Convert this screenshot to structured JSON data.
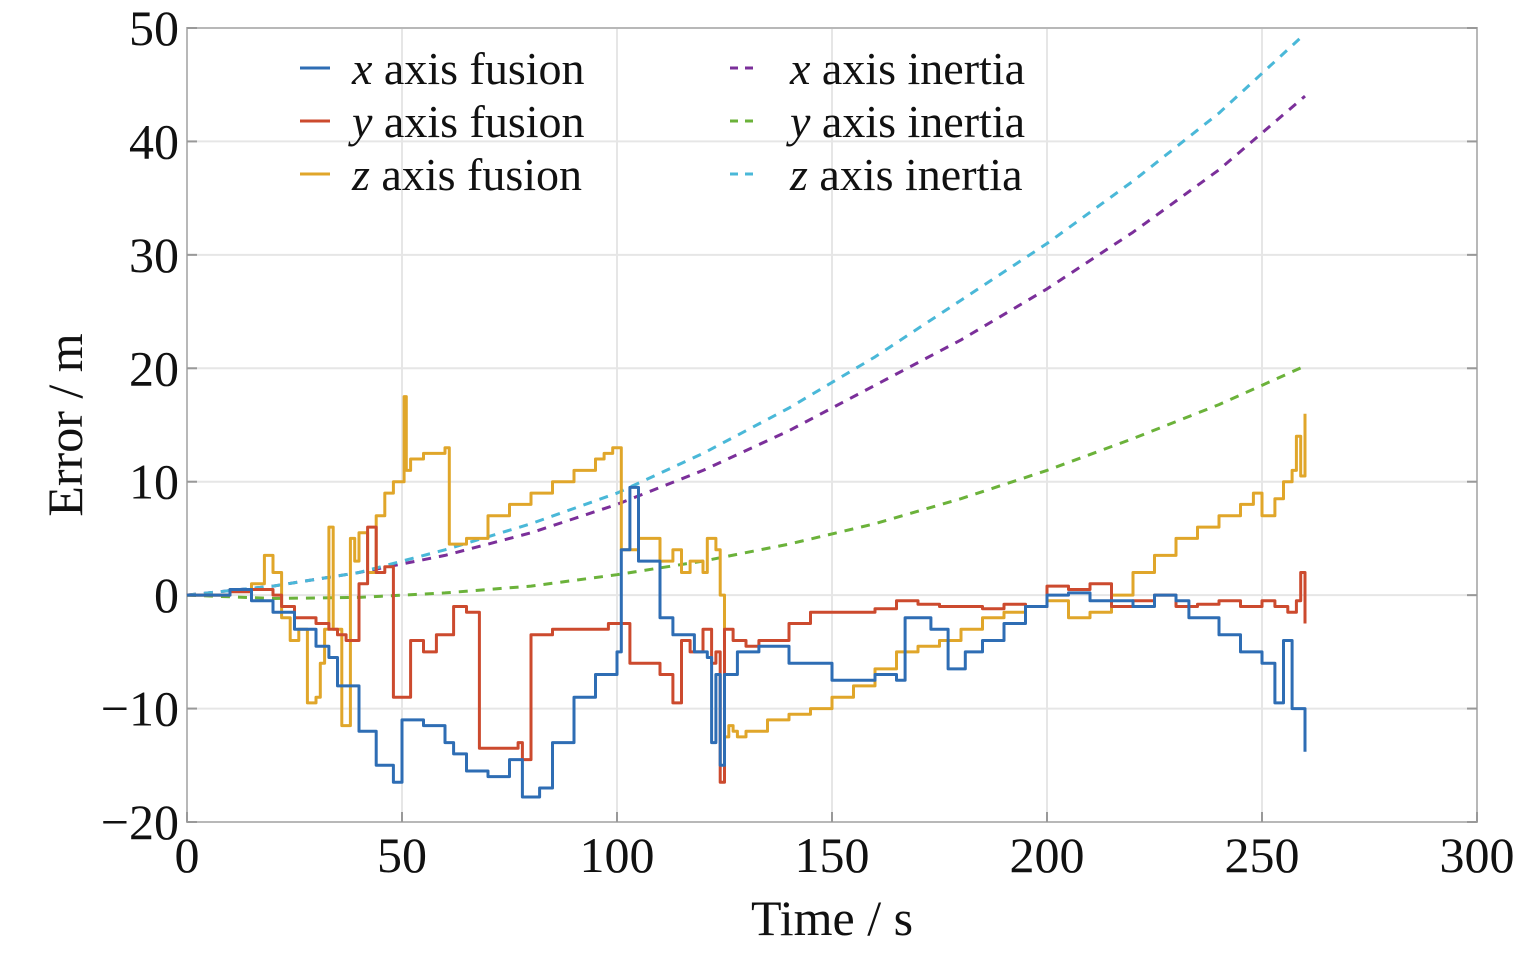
{
  "chart_data": {
    "type": "line",
    "xlabel": "Time / s",
    "ylabel": "Error / m",
    "xlim": [
      0,
      300
    ],
    "ylim": [
      -20,
      50
    ],
    "x_ticks": [
      "0",
      "50",
      "100",
      "150",
      "200",
      "250",
      "300"
    ],
    "y_ticks": [
      "−20",
      "−10",
      "0",
      "10",
      "20",
      "30",
      "40",
      "50"
    ],
    "grid": true,
    "legend_position": "top",
    "series": [
      {
        "name": "x axis fusion",
        "var": "x",
        "label": " axis fusion",
        "color": "#2e6db4",
        "dash": "solid",
        "x": [
          0,
          10,
          15,
          20,
          25,
          30,
          33,
          35,
          40,
          44,
          48,
          50,
          55,
          60,
          62,
          65,
          70,
          75,
          78,
          82,
          85,
          90,
          95,
          100,
          101,
          103,
          105,
          110,
          113,
          118,
          121,
          122,
          123,
          124,
          125,
          128,
          133,
          140,
          150,
          155,
          160,
          165,
          167,
          173,
          177,
          181,
          185,
          190,
          195,
          200,
          205,
          210,
          215,
          220,
          225,
          230,
          233,
          240,
          245,
          250,
          253,
          255,
          257,
          260
        ],
        "y": [
          0,
          0.5,
          -0.5,
          -1.5,
          -3.0,
          -4.5,
          -5.5,
          -8.0,
          -12.0,
          -15.0,
          -16.5,
          -11.0,
          -11.5,
          -13.0,
          -14.0,
          -15.5,
          -16.0,
          -14.5,
          -17.8,
          -17.0,
          -13.0,
          -9.0,
          -7.0,
          -5.0,
          4.0,
          9.5,
          3.0,
          -2.0,
          -3.5,
          -5.0,
          -5.5,
          -13.0,
          -7.0,
          -15.0,
          -7.0,
          -5.0,
          -4.5,
          -6.0,
          -7.5,
          -7.5,
          -7.0,
          -7.5,
          -2.0,
          -3.0,
          -6.5,
          -5.0,
          -4.0,
          -2.5,
          -1.0,
          0,
          0.2,
          -0.5,
          -0.5,
          -1.0,
          0,
          -0.5,
          -2.0,
          -3.5,
          -5.0,
          -6.0,
          -9.5,
          -4.0,
          -10.0,
          -13.8
        ]
      },
      {
        "name": "y axis fusion",
        "var": "y",
        "label": " axis fusion",
        "color": "#cc4a2e",
        "dash": "solid",
        "x": [
          0,
          10,
          15,
          20,
          22,
          25,
          30,
          33,
          35,
          37,
          40,
          42,
          44,
          46,
          48,
          50,
          52,
          55,
          58,
          62,
          65,
          68,
          70,
          75,
          77,
          78,
          80,
          85,
          90,
          95,
          98,
          100,
          103,
          107,
          110,
          113,
          115,
          117,
          120,
          122,
          123,
          124,
          125,
          127,
          130,
          133,
          140,
          145,
          150,
          155,
          160,
          165,
          170,
          175,
          180,
          185,
          190,
          195,
          200,
          205,
          210,
          215,
          220,
          225,
          230,
          235,
          240,
          245,
          250,
          253,
          256,
          258,
          259,
          260
        ],
        "y": [
          0,
          0.3,
          0.5,
          0,
          -1.0,
          -2.0,
          -2.5,
          -3.0,
          -3.5,
          -4.0,
          1.0,
          6.0,
          2.0,
          2.5,
          -9.0,
          -9.0,
          -4.0,
          -5.0,
          -3.5,
          -1.0,
          -1.5,
          -13.5,
          -13.5,
          -13.5,
          -13.0,
          -14.5,
          -3.5,
          -3.0,
          -3.0,
          -3.0,
          -2.5,
          -2.5,
          -6.0,
          -6.0,
          -7.0,
          -9.5,
          -4.0,
          -5.0,
          -3.0,
          -6.0,
          -5.0,
          -16.5,
          -3.0,
          -4.0,
          -4.5,
          -4.0,
          -2.5,
          -1.5,
          -1.5,
          -1.5,
          -1.2,
          -0.5,
          -0.8,
          -1.0,
          -1.0,
          -1.2,
          -0.8,
          -1.0,
          0.8,
          0.5,
          1.0,
          -1.0,
          -0.5,
          0,
          -1.0,
          -0.8,
          -0.5,
          -1.0,
          -0.5,
          -1.0,
          -1.5,
          -0.5,
          2.0,
          -2.5
        ]
      },
      {
        "name": "z axis fusion",
        "var": "z",
        "label": " axis fusion",
        "color": "#e0a62a",
        "dash": "solid",
        "x": [
          0,
          10,
          15,
          18,
          20,
          22,
          24,
          26,
          28,
          30,
          31,
          32,
          33,
          34,
          36,
          38,
          39,
          40,
          42,
          44,
          46,
          48,
          50,
          50.5,
          51,
          52,
          55,
          60,
          61,
          65,
          70,
          75,
          80,
          85,
          90,
          95,
          97,
          99,
          100,
          101,
          105,
          110,
          113,
          115,
          117,
          120,
          121,
          123,
          124,
          125,
          126,
          127,
          128,
          130,
          135,
          140,
          145,
          150,
          155,
          160,
          165,
          170,
          175,
          180,
          185,
          190,
          195,
          200,
          205,
          210,
          215,
          220,
          225,
          230,
          235,
          240,
          245,
          248,
          250,
          253,
          255,
          257,
          258,
          259,
          260
        ],
        "y": [
          0,
          0.5,
          1.0,
          3.5,
          2.0,
          -2.0,
          -4.0,
          -3.0,
          -9.5,
          -9.0,
          -6.0,
          -3.0,
          6.0,
          -3.0,
          -11.5,
          5.0,
          3.0,
          5.5,
          2.0,
          7.0,
          9.0,
          10.0,
          10.0,
          17.5,
          11.0,
          12.0,
          12.5,
          13.0,
          4.5,
          5.0,
          7.0,
          8.0,
          9.0,
          10.0,
          11.0,
          12.0,
          12.5,
          13.0,
          13.0,
          4.0,
          5.0,
          3.0,
          4.0,
          2.0,
          3.0,
          2.0,
          5.0,
          4.0,
          0,
          -12.5,
          -11.5,
          -12.0,
          -12.5,
          -12.0,
          -11.0,
          -10.5,
          -10.0,
          -9.0,
          -8.0,
          -6.5,
          -5.0,
          -4.5,
          -4.0,
          -3.0,
          -2.0,
          -1.5,
          -1.0,
          -0.5,
          -2.0,
          -1.5,
          0,
          2.0,
          3.5,
          5.0,
          6.0,
          7.0,
          8.0,
          9.0,
          7.0,
          8.5,
          10.0,
          11.0,
          14.0,
          10.5,
          16.0
        ]
      },
      {
        "name": "x axis inertia",
        "var": "x",
        "label": " axis inertia",
        "color": "#7b2f9a",
        "dash": "dashed",
        "x": [
          0,
          20,
          40,
          60,
          80,
          100,
          120,
          140,
          160,
          180,
          200,
          220,
          240,
          260
        ],
        "y": [
          0,
          0.8,
          2.0,
          3.5,
          5.5,
          8.0,
          11.0,
          14.5,
          18.5,
          22.5,
          27.0,
          32.0,
          37.5,
          44.0
        ]
      },
      {
        "name": "y axis inertia",
        "var": "y",
        "label": " axis inertia",
        "color": "#6bb23a",
        "dash": "dashed",
        "x": [
          0,
          20,
          40,
          60,
          80,
          100,
          120,
          140,
          160,
          180,
          200,
          220,
          240,
          260
        ],
        "y": [
          0,
          -0.3,
          -0.2,
          0.2,
          0.8,
          1.8,
          3.0,
          4.5,
          6.3,
          8.5,
          11.0,
          13.8,
          16.8,
          20.2
        ]
      },
      {
        "name": "z axis inertia",
        "var": "z",
        "label": " axis inertia",
        "color": "#4ab8d8",
        "dash": "dashed",
        "x": [
          0,
          20,
          40,
          60,
          80,
          100,
          120,
          140,
          160,
          180,
          200,
          220,
          240,
          260
        ],
        "y": [
          0,
          0.8,
          2.0,
          4.0,
          6.3,
          9.0,
          12.5,
          16.5,
          21.0,
          26.0,
          31.0,
          36.5,
          42.5,
          49.5
        ]
      }
    ]
  }
}
